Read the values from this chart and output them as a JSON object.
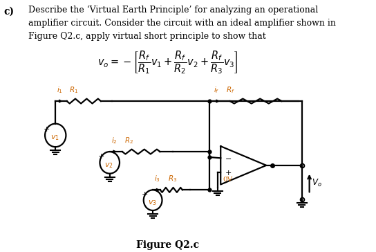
{
  "title_label": "c)",
  "text_block": "Describe the ‘Virtual Earth Principle’ for analyzing an operational\namplifier circuit. Consider the circuit with an ideal amplifier shown in\nFigure Q2.c, apply virtual short principle to show that",
  "formula": "$v_o = -\\left[\\dfrac{R_f}{R_1}v_1 + \\dfrac{R_f}{R_2}v_2 + \\dfrac{R_f}{R_3}v_3\\right]$",
  "figure_label": "Figure Q2.c",
  "bg_color": "#ffffff",
  "text_color": "#000000",
  "label_color": "#cc6600",
  "font_size_text": 9.0,
  "font_size_formula": 10.5,
  "font_size_fig_label": 10,
  "font_size_label": 7.5
}
